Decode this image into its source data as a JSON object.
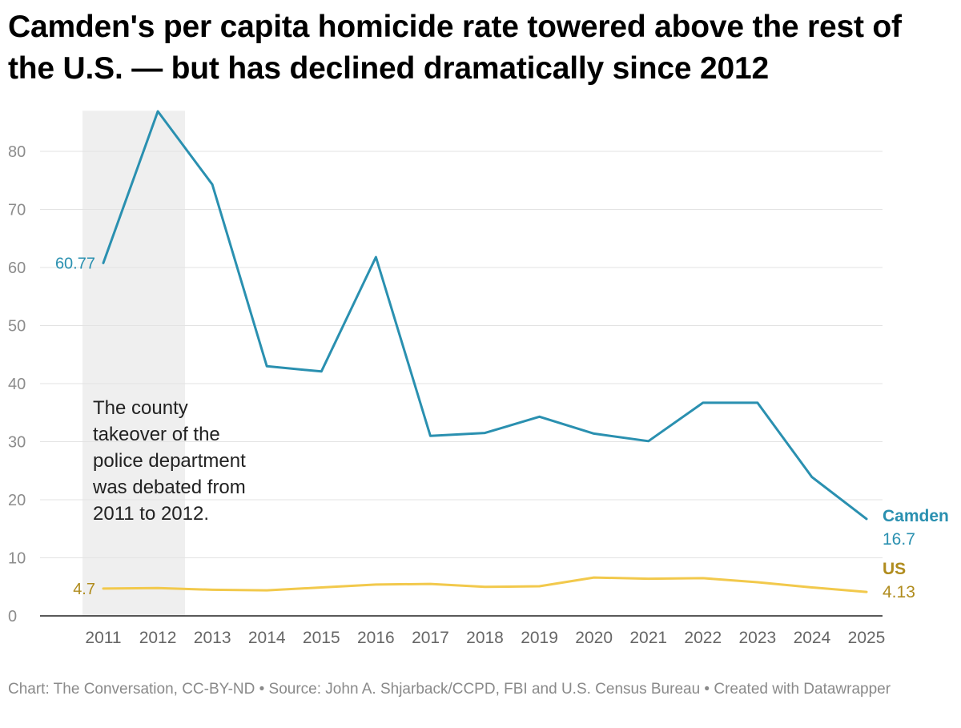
{
  "title": "Camden's per capita homicide rate towered above the rest of the U.S. — but has declined dramatically since 2012",
  "footer": "Chart: The Conversation, CC-BY-ND • Source: John A. Shjarback/CCPD, FBI and U.S. Census Bureau • Created with Datawrapper",
  "chart_data": {
    "type": "line",
    "x": [
      2011,
      2012,
      2013,
      2014,
      2015,
      2016,
      2017,
      2018,
      2019,
      2020,
      2021,
      2022,
      2023,
      2024,
      2025
    ],
    "x_tick_labels": [
      "2011",
      "2012",
      "2013",
      "2014",
      "2015",
      "2016",
      "2017",
      "2018",
      "2019",
      "2020",
      "2021",
      "2022",
      "2023",
      "2024",
      "2025"
    ],
    "y_ticks": [
      0,
      10,
      20,
      30,
      40,
      50,
      60,
      70,
      80
    ],
    "y_tick_labels": [
      "0",
      "10",
      "20",
      "30",
      "40",
      "50",
      "60",
      "70",
      "80"
    ],
    "ylim": [
      0,
      87
    ],
    "grid": true,
    "series": [
      {
        "name": "Camden",
        "color": "#2a90b0",
        "values": [
          60.77,
          86.9,
          74.3,
          43.0,
          42.1,
          61.8,
          31.0,
          31.5,
          34.3,
          31.4,
          30.1,
          36.7,
          36.7,
          23.9,
          16.7
        ],
        "start_label": "60.77",
        "end_value_label": "16.7"
      },
      {
        "name": "US",
        "color": "#f2c94c",
        "label_color": "#b08c1e",
        "values": [
          4.7,
          4.8,
          4.5,
          4.4,
          4.9,
          5.4,
          5.5,
          5.0,
          5.1,
          6.6,
          6.4,
          6.5,
          5.8,
          4.9,
          4.13
        ],
        "start_label": "4.7",
        "end_value_label": "4.13"
      }
    ],
    "highlight_range": {
      "from": 2011,
      "to": 2012,
      "color": "#efefef"
    },
    "annotation": {
      "lines": [
        "The county",
        "takeover of the",
        "police department",
        "was debated from",
        "2011 to 2012."
      ]
    }
  }
}
